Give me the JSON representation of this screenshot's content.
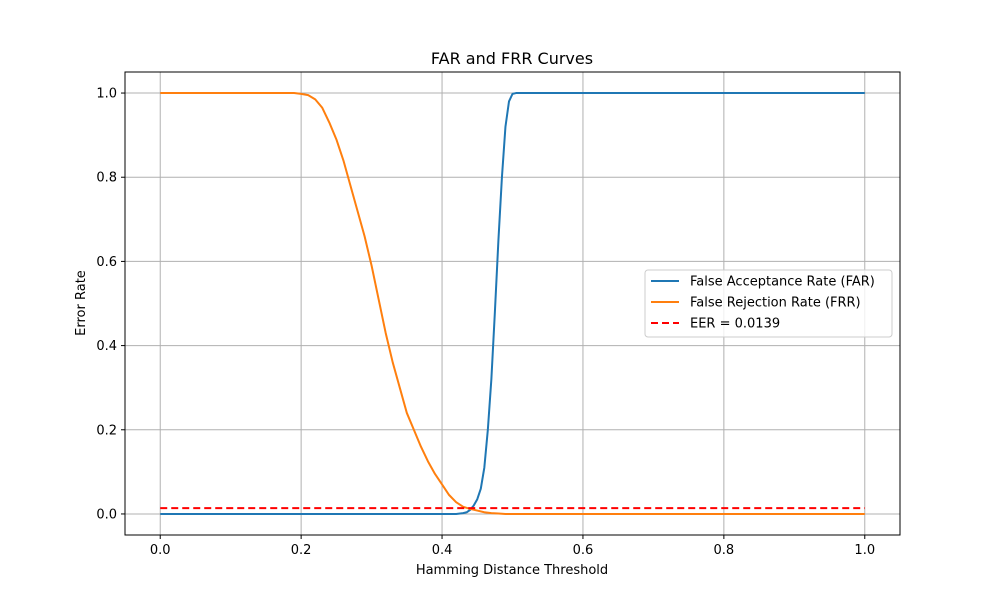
{
  "chart_data": {
    "type": "line",
    "title": "FAR and FRR Curves",
    "xlabel": "Hamming Distance Threshold",
    "ylabel": "Error Rate",
    "xlim": [
      -0.05,
      1.05
    ],
    "ylim": [
      -0.05,
      1.05
    ],
    "xticks": [
      0.0,
      0.2,
      0.4,
      0.6,
      0.8,
      1.0
    ],
    "xtick_labels": [
      "0.0",
      "0.2",
      "0.4",
      "0.6",
      "0.8",
      "1.0"
    ],
    "yticks": [
      0.0,
      0.2,
      0.4,
      0.6,
      0.8,
      1.0
    ],
    "ytick_labels": [
      "0.0",
      "0.2",
      "0.4",
      "0.6",
      "0.8",
      "1.0"
    ],
    "grid": true,
    "legend_position": "center-right",
    "series": [
      {
        "name": "False Acceptance Rate (FAR)",
        "color": "#1f77b4",
        "style": "solid",
        "x": [
          0.0,
          0.42,
          0.43,
          0.435,
          0.44,
          0.445,
          0.45,
          0.455,
          0.46,
          0.465,
          0.47,
          0.475,
          0.48,
          0.485,
          0.49,
          0.495,
          0.5,
          0.505,
          1.0
        ],
        "y": [
          0.0,
          0.0,
          0.002,
          0.004,
          0.01,
          0.02,
          0.035,
          0.06,
          0.11,
          0.2,
          0.32,
          0.48,
          0.65,
          0.8,
          0.92,
          0.98,
          0.998,
          1.0,
          1.0
        ]
      },
      {
        "name": "False Rejection Rate (FRR)",
        "color": "#ff7f0e",
        "style": "solid",
        "x": [
          0.0,
          0.19,
          0.2,
          0.21,
          0.22,
          0.23,
          0.24,
          0.25,
          0.26,
          0.27,
          0.28,
          0.29,
          0.3,
          0.31,
          0.32,
          0.33,
          0.34,
          0.35,
          0.36,
          0.37,
          0.38,
          0.39,
          0.4,
          0.41,
          0.42,
          0.43,
          0.44,
          0.45,
          0.46,
          0.47,
          0.48,
          0.49,
          0.5,
          1.0
        ],
        "y": [
          1.0,
          1.0,
          0.998,
          0.995,
          0.985,
          0.965,
          0.93,
          0.89,
          0.84,
          0.78,
          0.72,
          0.66,
          0.59,
          0.51,
          0.43,
          0.36,
          0.3,
          0.24,
          0.2,
          0.16,
          0.125,
          0.095,
          0.07,
          0.045,
          0.028,
          0.017,
          0.012,
          0.008,
          0.004,
          0.002,
          0.001,
          0.0,
          0.0,
          0.0
        ]
      },
      {
        "name": "EER = 0.0139",
        "color": "#ff0000",
        "style": "dashed",
        "x": [
          0.0,
          1.0
        ],
        "y": [
          0.0139,
          0.0139
        ]
      }
    ]
  }
}
